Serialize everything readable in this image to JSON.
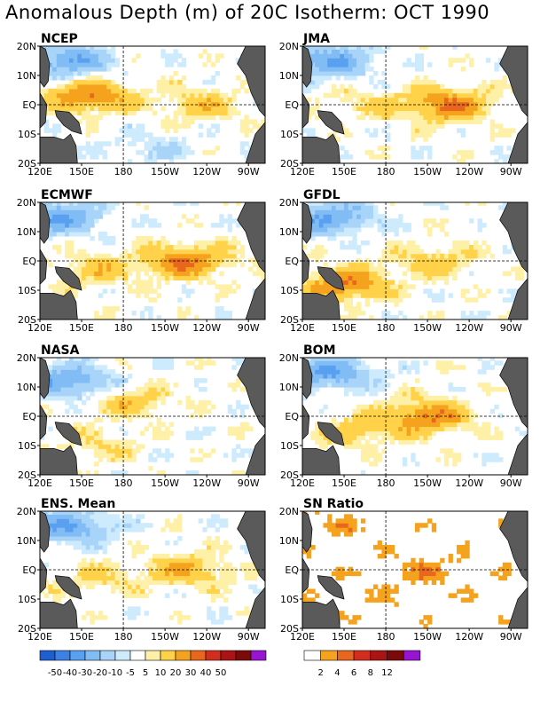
{
  "title": "Anomalous Depth (m) of 20C Isotherm: OCT 1990",
  "colors": {
    "land": "#5a5a5a",
    "anomaly_scale": [
      "#1e5fd0",
      "#3c82e6",
      "#5aa0f0",
      "#82bcf5",
      "#a8d4fa",
      "#cdebfd",
      "#ffffff",
      "#fff0a8",
      "#ffd24a",
      "#f5a31e",
      "#e8661e",
      "#d22d1e",
      "#aa1414",
      "#7d0a0a",
      "#9614d2"
    ],
    "ratio_scale": [
      "#ffffff",
      "#f5a31e",
      "#e8661e",
      "#d22d1e",
      "#aa1414",
      "#7d0a0a",
      "#9614d2"
    ]
  },
  "chart_data": [
    {
      "type": "heatmap",
      "title": "NCEP",
      "variable": "20C isotherm depth anomaly (m)",
      "period": "OCT 1990",
      "x_ticks": [
        "120E",
        "150E",
        "180",
        "150W",
        "120W",
        "90W"
      ],
      "y_ticks": [
        "20N",
        "10N",
        "EQ",
        "10S",
        "20S"
      ],
      "features": [
        {
          "lon": 155,
          "lat": 3,
          "anom": 30
        },
        {
          "lon": 235,
          "lat": 0,
          "anom": 15
        },
        {
          "lon": 140,
          "lat": 15,
          "anom": -30
        },
        {
          "lon": 200,
          "lat": -15,
          "anom": -10
        }
      ]
    },
    {
      "type": "heatmap",
      "title": "JMA",
      "variable": "20C isotherm depth anomaly (m)",
      "period": "OCT 1990",
      "x_ticks": [
        "120E",
        "150E",
        "180",
        "150W",
        "120W",
        "90W"
      ],
      "y_ticks": [
        "20N",
        "10N",
        "EQ",
        "10S",
        "20S"
      ],
      "features": [
        {
          "lon": 225,
          "lat": 0,
          "anom": 30
        },
        {
          "lon": 165,
          "lat": 0,
          "anom": 10
        },
        {
          "lon": 140,
          "lat": 15,
          "anom": -30
        }
      ]
    },
    {
      "type": "heatmap",
      "title": "ECMWF",
      "variable": "20C isotherm depth anomaly (m)",
      "period": "OCT 1990",
      "x_ticks": [
        "120E",
        "150E",
        "180",
        "150W",
        "120W",
        "90W"
      ],
      "y_ticks": [
        "20N",
        "10N",
        "EQ",
        "10S",
        "20S"
      ],
      "features": [
        {
          "lon": 225,
          "lat": 0,
          "anom": 30
        },
        {
          "lon": 160,
          "lat": -3,
          "anom": 15
        },
        {
          "lon": 135,
          "lat": 15,
          "anom": -30
        }
      ]
    },
    {
      "type": "heatmap",
      "title": "GFDL",
      "variable": "20C isotherm depth anomaly (m)",
      "period": "OCT 1990",
      "x_ticks": [
        "120E",
        "150E",
        "180",
        "150W",
        "120W",
        "90W"
      ],
      "y_ticks": [
        "20N",
        "10N",
        "EQ",
        "10S",
        "20S"
      ],
      "features": [
        {
          "lon": 150,
          "lat": -8,
          "anom": 30
        },
        {
          "lon": 215,
          "lat": 0,
          "anom": 15
        },
        {
          "lon": 140,
          "lat": 15,
          "anom": -30
        }
      ]
    },
    {
      "type": "heatmap",
      "title": "NASA",
      "variable": "20C isotherm depth anomaly (m)",
      "period": "OCT 1990",
      "x_ticks": [
        "120E",
        "150E",
        "180",
        "150W",
        "120W",
        "90W"
      ],
      "y_ticks": [
        "20N",
        "10N",
        "EQ",
        "10S",
        "20S"
      ],
      "features": [
        {
          "lon": 185,
          "lat": 5,
          "anom": 15
        },
        {
          "lon": 160,
          "lat": -10,
          "anom": 10
        },
        {
          "lon": 140,
          "lat": 12,
          "anom": -30
        }
      ]
    },
    {
      "type": "heatmap",
      "title": "BOM",
      "variable": "20C isotherm depth anomaly (m)",
      "period": "OCT 1990",
      "x_ticks": [
        "120E",
        "150E",
        "180",
        "150W",
        "120W",
        "90W"
      ],
      "y_ticks": [
        "20N",
        "10N",
        "EQ",
        "10S",
        "20S"
      ],
      "features": [
        {
          "lon": 210,
          "lat": 0,
          "anom": 30
        },
        {
          "lon": 160,
          "lat": -5,
          "anom": 15
        },
        {
          "lon": 140,
          "lat": 15,
          "anom": -30
        }
      ]
    },
    {
      "type": "heatmap",
      "title": "ENS. Mean",
      "variable": "20C isotherm depth anomaly (m)",
      "period": "OCT 1990",
      "x_ticks": [
        "120E",
        "150E",
        "180",
        "150W",
        "120W",
        "90W"
      ],
      "y_ticks": [
        "20N",
        "10N",
        "EQ",
        "10S",
        "20S"
      ],
      "features": [
        {
          "lon": 225,
          "lat": 0,
          "anom": 20
        },
        {
          "lon": 160,
          "lat": -3,
          "anom": 10
        },
        {
          "lon": 140,
          "lat": 15,
          "anom": -30
        }
      ]
    },
    {
      "type": "heatmap",
      "title": "SN Ratio",
      "variable": "signal-to-noise ratio",
      "period": "OCT 1990",
      "x_ticks": [
        "120E",
        "150E",
        "180",
        "150W",
        "120W",
        "90W"
      ],
      "y_ticks": [
        "20N",
        "10N",
        "EQ",
        "10S",
        "20S"
      ],
      "features": [
        {
          "lon": 210,
          "lat": 0,
          "ratio": 8
        },
        {
          "lon": 140,
          "lat": 15,
          "ratio": 6
        },
        {
          "lon": 160,
          "lat": -10,
          "ratio": 4
        }
      ]
    }
  ],
  "colorbars": [
    {
      "name": "anomaly",
      "labels": [
        "-50",
        "-40",
        "-30",
        "-20",
        "-10",
        "-5",
        "5",
        "10",
        "20",
        "30",
        "40",
        "50"
      ]
    },
    {
      "name": "sn_ratio",
      "labels": [
        "2",
        "4",
        "6",
        "8",
        "12"
      ]
    }
  ]
}
